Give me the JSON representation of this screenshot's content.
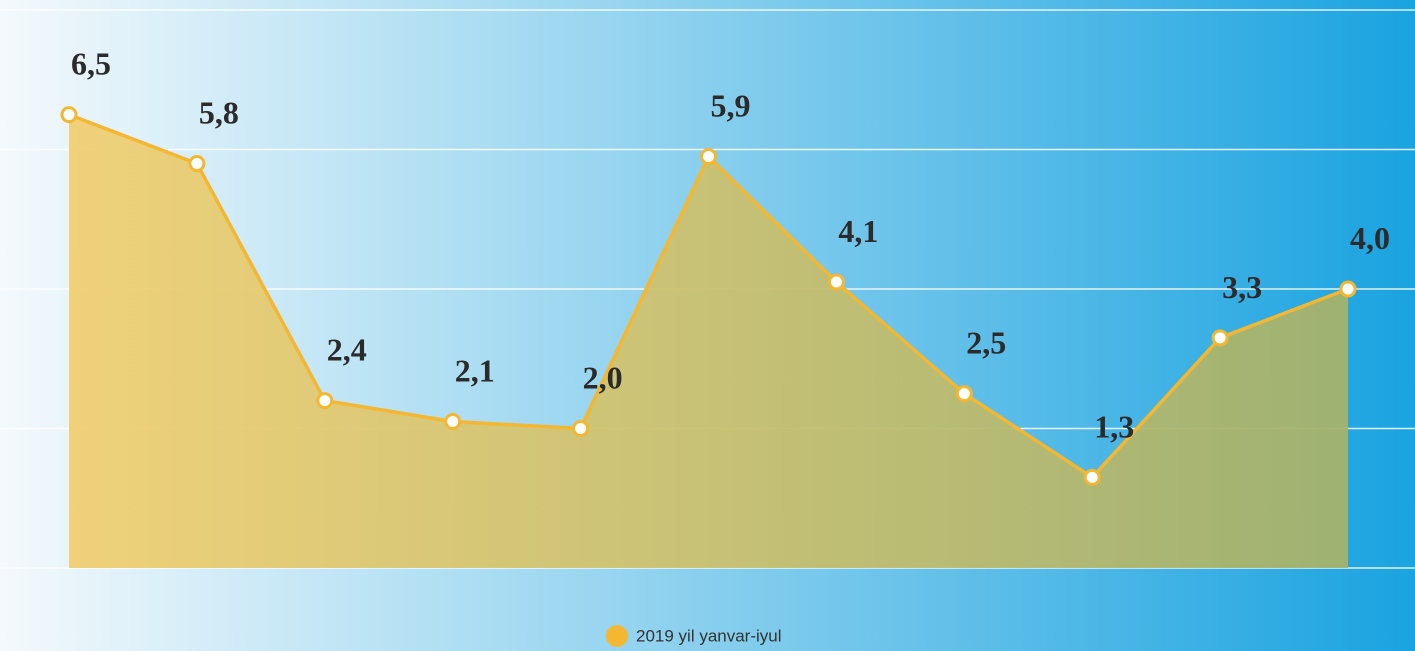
{
  "chart_data": {
    "type": "area",
    "series": [
      {
        "name": "2019 yil yanvar-iyul",
        "color": "#f4b731",
        "values": [
          6.5,
          5.8,
          2.4,
          2.1,
          2.0,
          5.9,
          4.1,
          2.5,
          1.3,
          3.3,
          4.0
        ],
        "value_labels": [
          "6,5",
          "5,8",
          "2,4",
          "2,1",
          "2,0",
          "5,9",
          "4,1",
          "2,5",
          "1,3",
          "3,3",
          "4,0"
        ]
      }
    ],
    "ylim": [
      0,
      8
    ],
    "yticks": [
      0,
      2,
      4,
      6,
      8
    ],
    "grid": true,
    "legend": "bottom"
  }
}
